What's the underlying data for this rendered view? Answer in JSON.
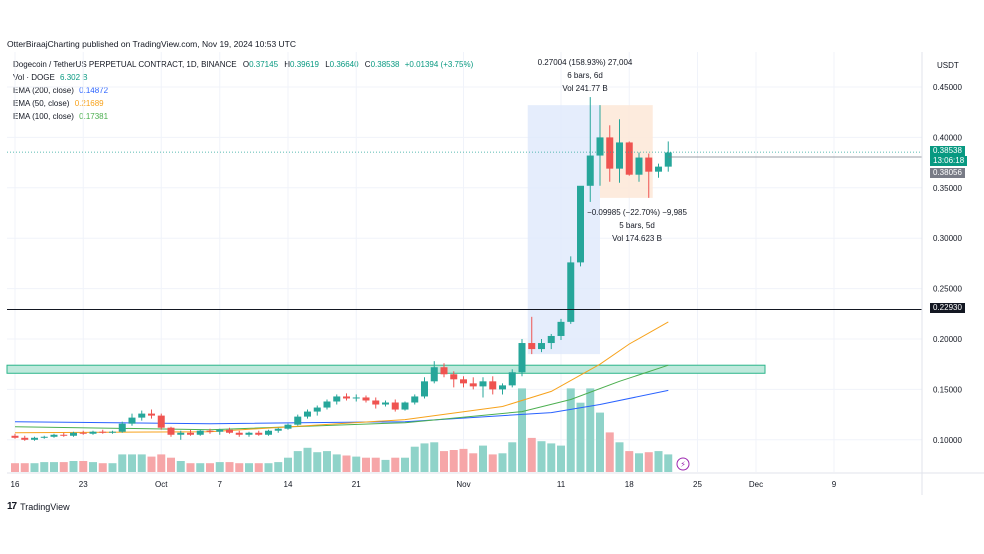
{
  "header": {
    "published_by": "OtterBiraajCharting published on TradingView.com, Nov 19, 2024 10:53 UTC"
  },
  "legend": {
    "symbol": "Dogecoin / TetherUS PERPETUAL CONTRACT, 1D, BINANCE",
    "ohlc": {
      "o_label": "O",
      "o": "0.37145",
      "h_label": "H",
      "h": "0.39619",
      "l_label": "L",
      "l": "0.36640",
      "c_label": "C",
      "c": "0.38538",
      "change": "+0.01394 (+3.75%)"
    },
    "volume": {
      "label": "Vol · DOGE",
      "value": "6.302 B"
    },
    "ema200": {
      "label": "EMA (200, close)",
      "value": "0.14872",
      "color": "#2962ff"
    },
    "ema50": {
      "label": "EMA (50, close)",
      "value": "0.21689",
      "color": "#f7a21b"
    },
    "ema100": {
      "label": "EMA (100, close)",
      "value": "0.17381",
      "color": "#4caf50"
    }
  },
  "annotations": {
    "range_up": {
      "line1": "0.27004 (158.93%) 27,004",
      "line2": "6 bars, 6d",
      "line3": "Vol 241.77 B"
    },
    "range_down": {
      "line1": "−0.09985 (−22.70%) −9,985",
      "line2": "5 bars, 5d",
      "line3": "Vol 174.623 B"
    }
  },
  "price_axis": {
    "unit": "USDT",
    "last_price": "0.38538",
    "countdown": "13:06:18",
    "ref_price": "0.38056",
    "hline_price": "0.22930"
  },
  "footer": {
    "brand": "TradingView"
  },
  "colors": {
    "up": "#26a69a",
    "down": "#ef5350",
    "vol_up": "#8fd3c9",
    "vol_down": "#f6a6a8",
    "grid": "#f0f3fa",
    "zone": "#2bb58a"
  },
  "chart_data": {
    "type": "candlestick",
    "title": "Dogecoin / TetherUS PERPETUAL CONTRACT, 1D, BINANCE",
    "ylim": [
      0.06,
      0.46
    ],
    "y_ticks": [
      0.45,
      0.4,
      0.35,
      0.3,
      0.25,
      0.2,
      0.15,
      0.1
    ],
    "y_tick_labels": [
      "0.45000",
      "0.40000",
      "0.35000",
      "0.30000",
      "0.25000",
      "0.20000",
      "0.15000",
      "0.10000"
    ],
    "x_ticks": [
      {
        "label": "16",
        "i": 0
      },
      {
        "label": "23",
        "i": 7
      },
      {
        "label": "Oct",
        "i": 15
      },
      {
        "label": "7",
        "i": 21
      },
      {
        "label": "14",
        "i": 28
      },
      {
        "label": "21",
        "i": 35
      },
      {
        "label": "Nov",
        "i": 46
      },
      {
        "label": "11",
        "i": 56
      },
      {
        "label": "18",
        "i": 63
      },
      {
        "label": "25",
        "i": 70
      },
      {
        "label": "Dec",
        "i": 76
      },
      {
        "label": "9",
        "i": 84
      }
    ],
    "candles": [
      {
        "o": 0.104,
        "h": 0.106,
        "l": 0.101,
        "c": 0.102,
        "v": 0.8
      },
      {
        "o": 0.102,
        "h": 0.104,
        "l": 0.099,
        "c": 0.1,
        "v": 0.8
      },
      {
        "o": 0.1,
        "h": 0.103,
        "l": 0.099,
        "c": 0.102,
        "v": 0.8
      },
      {
        "o": 0.102,
        "h": 0.104,
        "l": 0.101,
        "c": 0.103,
        "v": 0.9
      },
      {
        "o": 0.103,
        "h": 0.106,
        "l": 0.102,
        "c": 0.105,
        "v": 0.9
      },
      {
        "o": 0.105,
        "h": 0.107,
        "l": 0.103,
        "c": 0.104,
        "v": 0.9
      },
      {
        "o": 0.104,
        "h": 0.108,
        "l": 0.103,
        "c": 0.107,
        "v": 1.0
      },
      {
        "o": 0.107,
        "h": 0.109,
        "l": 0.105,
        "c": 0.106,
        "v": 1.0
      },
      {
        "o": 0.106,
        "h": 0.109,
        "l": 0.105,
        "c": 0.108,
        "v": 0.9
      },
      {
        "o": 0.108,
        "h": 0.11,
        "l": 0.106,
        "c": 0.107,
        "v": 0.8
      },
      {
        "o": 0.107,
        "h": 0.109,
        "l": 0.106,
        "c": 0.108,
        "v": 0.8
      },
      {
        "o": 0.108,
        "h": 0.118,
        "l": 0.107,
        "c": 0.116,
        "v": 1.6
      },
      {
        "o": 0.116,
        "h": 0.126,
        "l": 0.114,
        "c": 0.122,
        "v": 1.6
      },
      {
        "o": 0.122,
        "h": 0.129,
        "l": 0.119,
        "c": 0.126,
        "v": 1.6
      },
      {
        "o": 0.126,
        "h": 0.13,
        "l": 0.121,
        "c": 0.124,
        "v": 1.4
      },
      {
        "o": 0.124,
        "h": 0.126,
        "l": 0.11,
        "c": 0.112,
        "v": 1.6
      },
      {
        "o": 0.112,
        "h": 0.113,
        "l": 0.103,
        "c": 0.105,
        "v": 1.3
      },
      {
        "o": 0.105,
        "h": 0.109,
        "l": 0.1,
        "c": 0.107,
        "v": 1.0
      },
      {
        "o": 0.107,
        "h": 0.11,
        "l": 0.104,
        "c": 0.105,
        "v": 0.8
      },
      {
        "o": 0.105,
        "h": 0.11,
        "l": 0.104,
        "c": 0.109,
        "v": 0.8
      },
      {
        "o": 0.109,
        "h": 0.111,
        "l": 0.106,
        "c": 0.108,
        "v": 0.8
      },
      {
        "o": 0.108,
        "h": 0.111,
        "l": 0.105,
        "c": 0.11,
        "v": 0.9
      },
      {
        "o": 0.11,
        "h": 0.112,
        "l": 0.106,
        "c": 0.107,
        "v": 0.9
      },
      {
        "o": 0.107,
        "h": 0.109,
        "l": 0.103,
        "c": 0.105,
        "v": 0.8
      },
      {
        "o": 0.105,
        "h": 0.108,
        "l": 0.103,
        "c": 0.107,
        "v": 0.8
      },
      {
        "o": 0.107,
        "h": 0.109,
        "l": 0.104,
        "c": 0.105,
        "v": 0.8
      },
      {
        "o": 0.105,
        "h": 0.11,
        "l": 0.104,
        "c": 0.109,
        "v": 0.8
      },
      {
        "o": 0.109,
        "h": 0.112,
        "l": 0.107,
        "c": 0.111,
        "v": 0.9
      },
      {
        "o": 0.111,
        "h": 0.116,
        "l": 0.11,
        "c": 0.115,
        "v": 1.3
      },
      {
        "o": 0.115,
        "h": 0.125,
        "l": 0.114,
        "c": 0.123,
        "v": 1.9
      },
      {
        "o": 0.123,
        "h": 0.13,
        "l": 0.121,
        "c": 0.128,
        "v": 2.2
      },
      {
        "o": 0.128,
        "h": 0.134,
        "l": 0.124,
        "c": 0.132,
        "v": 1.8
      },
      {
        "o": 0.132,
        "h": 0.14,
        "l": 0.13,
        "c": 0.138,
        "v": 1.9
      },
      {
        "o": 0.138,
        "h": 0.145,
        "l": 0.135,
        "c": 0.143,
        "v": 1.6
      },
      {
        "o": 0.143,
        "h": 0.146,
        "l": 0.139,
        "c": 0.141,
        "v": 1.5
      },
      {
        "o": 0.141,
        "h": 0.145,
        "l": 0.138,
        "c": 0.142,
        "v": 1.4
      },
      {
        "o": 0.142,
        "h": 0.144,
        "l": 0.137,
        "c": 0.139,
        "v": 1.3
      },
      {
        "o": 0.139,
        "h": 0.142,
        "l": 0.131,
        "c": 0.135,
        "v": 1.3
      },
      {
        "o": 0.135,
        "h": 0.139,
        "l": 0.133,
        "c": 0.137,
        "v": 1.1
      },
      {
        "o": 0.137,
        "h": 0.14,
        "l": 0.128,
        "c": 0.13,
        "v": 1.3
      },
      {
        "o": 0.13,
        "h": 0.138,
        "l": 0.129,
        "c": 0.137,
        "v": 1.3
      },
      {
        "o": 0.137,
        "h": 0.145,
        "l": 0.135,
        "c": 0.143,
        "v": 2.3
      },
      {
        "o": 0.143,
        "h": 0.162,
        "l": 0.141,
        "c": 0.158,
        "v": 2.6
      },
      {
        "o": 0.158,
        "h": 0.178,
        "l": 0.156,
        "c": 0.172,
        "v": 2.7
      },
      {
        "o": 0.172,
        "h": 0.176,
        "l": 0.162,
        "c": 0.165,
        "v": 1.9
      },
      {
        "o": 0.165,
        "h": 0.168,
        "l": 0.152,
        "c": 0.16,
        "v": 2.0
      },
      {
        "o": 0.16,
        "h": 0.163,
        "l": 0.152,
        "c": 0.156,
        "v": 2.1
      },
      {
        "o": 0.156,
        "h": 0.162,
        "l": 0.15,
        "c": 0.153,
        "v": 1.7
      },
      {
        "o": 0.153,
        "h": 0.162,
        "l": 0.142,
        "c": 0.158,
        "v": 2.4
      },
      {
        "o": 0.158,
        "h": 0.163,
        "l": 0.145,
        "c": 0.15,
        "v": 1.6
      },
      {
        "o": 0.15,
        "h": 0.156,
        "l": 0.145,
        "c": 0.154,
        "v": 1.7
      },
      {
        "o": 0.154,
        "h": 0.17,
        "l": 0.152,
        "c": 0.167,
        "v": 2.7
      },
      {
        "o": 0.167,
        "h": 0.2,
        "l": 0.163,
        "c": 0.196,
        "v": 7.6
      },
      {
        "o": 0.196,
        "h": 0.222,
        "l": 0.185,
        "c": 0.19,
        "v": 3.1
      },
      {
        "o": 0.19,
        "h": 0.2,
        "l": 0.187,
        "c": 0.196,
        "v": 2.8
      },
      {
        "o": 0.196,
        "h": 0.205,
        "l": 0.19,
        "c": 0.203,
        "v": 2.6
      },
      {
        "o": 0.203,
        "h": 0.22,
        "l": 0.199,
        "c": 0.217,
        "v": 2.4
      },
      {
        "o": 0.217,
        "h": 0.282,
        "l": 0.215,
        "c": 0.276,
        "v": 7.6
      },
      {
        "o": 0.276,
        "h": 0.35,
        "l": 0.272,
        "c": 0.352,
        "v": 6.3
      },
      {
        "o": 0.352,
        "h": 0.44,
        "l": 0.336,
        "c": 0.382,
        "v": 7.6
      },
      {
        "o": 0.382,
        "h": 0.432,
        "l": 0.352,
        "c": 0.4,
        "v": 5.4
      },
      {
        "o": 0.4,
        "h": 0.412,
        "l": 0.356,
        "c": 0.369,
        "v": 3.6
      },
      {
        "o": 0.369,
        "h": 0.418,
        "l": 0.355,
        "c": 0.395,
        "v": 2.7
      },
      {
        "o": 0.395,
        "h": 0.396,
        "l": 0.362,
        "c": 0.363,
        "v": 1.9
      },
      {
        "o": 0.363,
        "h": 0.385,
        "l": 0.356,
        "c": 0.38,
        "v": 1.7
      },
      {
        "o": 0.38,
        "h": 0.384,
        "l": 0.34,
        "c": 0.366,
        "v": 1.8
      },
      {
        "o": 0.366,
        "h": 0.374,
        "l": 0.36,
        "c": 0.371,
        "v": 1.9
      },
      {
        "o": 0.371,
        "h": 0.396,
        "l": 0.366,
        "c": 0.385,
        "v": 1.6
      }
    ],
    "ema200": [
      [
        0,
        0.118
      ],
      [
        20,
        0.116
      ],
      [
        40,
        0.118
      ],
      [
        55,
        0.127
      ],
      [
        60,
        0.135
      ],
      [
        67,
        0.149
      ]
    ],
    "ema50": [
      [
        0,
        0.107
      ],
      [
        20,
        0.108
      ],
      [
        40,
        0.12
      ],
      [
        50,
        0.133
      ],
      [
        55,
        0.148
      ],
      [
        60,
        0.175
      ],
      [
        63,
        0.195
      ],
      [
        67,
        0.217
      ]
    ],
    "ema100": [
      [
        0,
        0.113
      ],
      [
        20,
        0.11
      ],
      [
        40,
        0.117
      ],
      [
        52,
        0.128
      ],
      [
        57,
        0.14
      ],
      [
        62,
        0.158
      ],
      [
        67,
        0.174
      ]
    ],
    "support_zone": [
      0.166,
      0.174
    ],
    "hline": 0.2293,
    "last_price_line": 0.38538,
    "ref_price_line": 0.38056
  }
}
